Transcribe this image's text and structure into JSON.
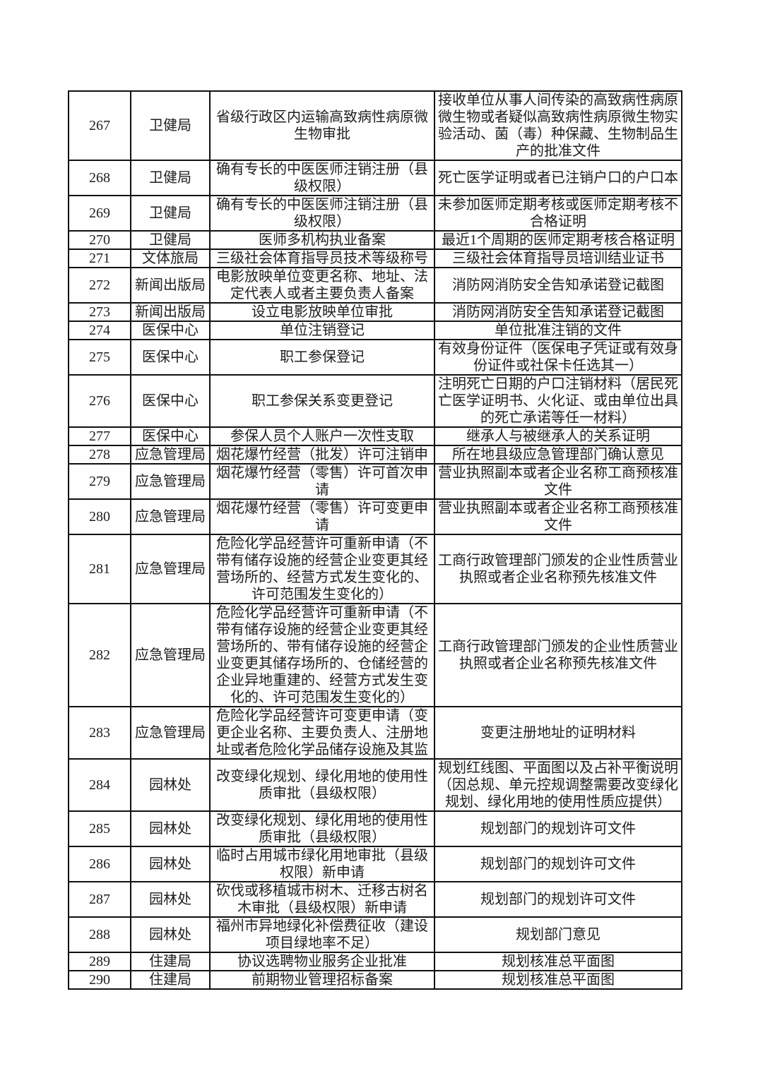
{
  "page": {
    "background": "#fefefe"
  },
  "table": {
    "colors": {
      "item_text": "#d23a3a",
      "body_text": "#1e1e1e",
      "border": "#101010"
    },
    "rows": [
      {
        "no": "267",
        "dept": "卫健局",
        "item": "省级行政区内运输高致病性病原微生物审批",
        "material": "接收单位从事人间传染的高致病性病原微生物或者疑似高致病性病原微生物实验活动、菌（毒）种保藏、生物制品生产的批准文件"
      },
      {
        "no": "268",
        "dept": "卫健局",
        "item": "确有专长的中医医师注销注册（县级权限）",
        "material": "死亡医学证明或者已注销户口的户口本"
      },
      {
        "no": "269",
        "dept": "卫健局",
        "item": "确有专长的中医医师注销注册（县级权限）",
        "material": "未参加医师定期考核或医师定期考核不合格证明"
      },
      {
        "no": "270",
        "dept": "卫健局",
        "item": "医师多机构执业备案",
        "material": "最近1个周期的医师定期考核合格证明"
      },
      {
        "no": "271",
        "dept": "文体旅局",
        "item": "三级社会体育指导员技术等级称号",
        "material": "三级社会体育指导员培训结业证书"
      },
      {
        "no": "272",
        "dept": "新闻出版局",
        "item": "电影放映单位变更名称、地址、法定代表人或者主要负责人备案",
        "material": "消防网消防安全告知承诺登记截图"
      },
      {
        "no": "273",
        "dept": "新闻出版局",
        "item": "设立电影放映单位审批",
        "material": "消防网消防安全告知承诺登记截图"
      },
      {
        "no": "274",
        "dept": "医保中心",
        "item": "单位注销登记",
        "material": "单位批准注销的文件"
      },
      {
        "no": "275",
        "dept": "医保中心",
        "item": "职工参保登记",
        "material": "有效身份证件（医保电子凭证或有效身份证件或社保卡任选其一）"
      },
      {
        "no": "276",
        "dept": "医保中心",
        "item": "职工参保关系变更登记",
        "material": "注明死亡日期的户口注销材料（居民死亡医学证明书、火化证、或由单位出具的死亡承诺等任一材料）"
      },
      {
        "no": "277",
        "dept": "医保中心",
        "item": "参保人员个人账户一次性支取",
        "material": "继承人与被继承人的关系证明"
      },
      {
        "no": "278",
        "dept": "应急管理局",
        "item": "烟花爆竹经营（批发）许可注销申",
        "material": "所在地县级应急管理部门确认意见"
      },
      {
        "no": "279",
        "dept": "应急管理局",
        "item": "烟花爆竹经营（零售）许可首次申请",
        "material": "营业执照副本或者企业名称工商预核准文件"
      },
      {
        "no": "280",
        "dept": "应急管理局",
        "item": "烟花爆竹经营（零售）许可变更申请",
        "material": "营业执照副本或者企业名称工商预核准文件"
      },
      {
        "no": "281",
        "dept": "应急管理局",
        "item": "危险化学品经营许可重新申请（不带有储存设施的经营企业变更其经营场所的、经营方式发生变化的、许可范围发生变化的）",
        "material": "工商行政管理部门颁发的企业性质营业执照或者企业名称预先核准文件"
      },
      {
        "no": "282",
        "dept": "应急管理局",
        "item": "危险化学品经营许可重新申请（不带有储存设施的经营企业变更其经营场所的、带有储存设施的经营企业变更其储存场所的、仓储经营的企业异地重建的、经营方式发生变化的、许可范围发生变化的）",
        "material": "工商行政管理部门颁发的企业性质营业执照或者企业名称预先核准文件"
      },
      {
        "no": "283",
        "dept": "应急管理局",
        "item": "危险化学品经营许可变更申请（变更企业名称、主要负责人、注册地址或者危险化学品储存设施及其监",
        "material": "变更注册地址的证明材料"
      },
      {
        "no": "284",
        "dept": "园林处",
        "item": "改变绿化规划、绿化用地的使用性质审批（县级权限）",
        "material": "规划红线图、平面图以及占补平衡说明（因总规、单元控规调整需要改变绿化规划、绿化用地的使用性质应提供）"
      },
      {
        "no": "285",
        "dept": "园林处",
        "item": "改变绿化规划、绿化用地的使用性质审批（县级权限）",
        "material": "规划部门的规划许可文件"
      },
      {
        "no": "286",
        "dept": "园林处",
        "item": "临时占用城市绿化用地审批（县级权限）新申请",
        "material": "规划部门的规划许可文件"
      },
      {
        "no": "287",
        "dept": "园林处",
        "item": "砍伐或移植城市树木、迁移古树名木审批（县级权限）新申请",
        "material": "规划部门的规划许可文件"
      },
      {
        "no": "288",
        "dept": "园林处",
        "item": "福州市异地绿化补偿费征收（建设项目绿地率不足）",
        "material": "规划部门意见"
      },
      {
        "no": "289",
        "dept": "住建局",
        "item": "协议选聘物业服务企业批准",
        "material": "规划核准总平面图"
      },
      {
        "no": "290",
        "dept": "住建局",
        "item": "前期物业管理招标备案",
        "material": "规划核准总平面图"
      }
    ]
  }
}
